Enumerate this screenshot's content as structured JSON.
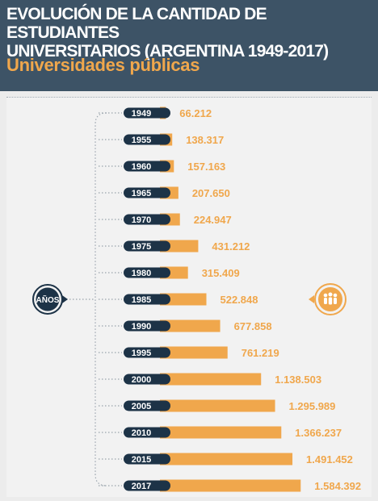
{
  "header": {
    "title": "EVOLUCIÓN DE LA CANTIDAD DE ESTUDIANTES\nUNIVERSITARIOS (ARGENTINA 1949-2017)",
    "subtitle": "Universidades públicas"
  },
  "colors": {
    "header_bg": "#3d5366",
    "accent": "#f0a74c",
    "navy": "#1d3347",
    "background": "#ececec"
  },
  "left_badge": {
    "label": "AÑOS"
  },
  "right_badge": {
    "icon": "students-group-icon"
  },
  "chart_data": {
    "type": "bar",
    "orientation": "horizontal",
    "title": "EVOLUCIÓN DE LA CANTIDAD DE ESTUDIANTES UNIVERSITARIOS (ARGENTINA 1949-2017)",
    "subtitle": "Universidades públicas",
    "category_axis_label": "AÑOS",
    "categories": [
      "1949",
      "1955",
      "1960",
      "1965",
      "1970",
      "1975",
      "1980",
      "1985",
      "1990",
      "1995",
      "2000",
      "2005",
      "2010",
      "2015",
      "2017"
    ],
    "values": [
      66212,
      138317,
      157163,
      207650,
      224947,
      431212,
      315409,
      522848,
      677858,
      761219,
      1138503,
      1295989,
      1366237,
      1491452,
      1584392
    ],
    "value_labels": [
      "66.212",
      "138.317",
      "157.163",
      "207.650",
      "224.947",
      "431.212",
      "315.409",
      "522.848",
      "677.858",
      "761.219",
      "1.138.503",
      "1.295.989",
      "1.366.237",
      "1.491.452",
      "1.584.392"
    ],
    "grid": false,
    "legend": "none"
  }
}
